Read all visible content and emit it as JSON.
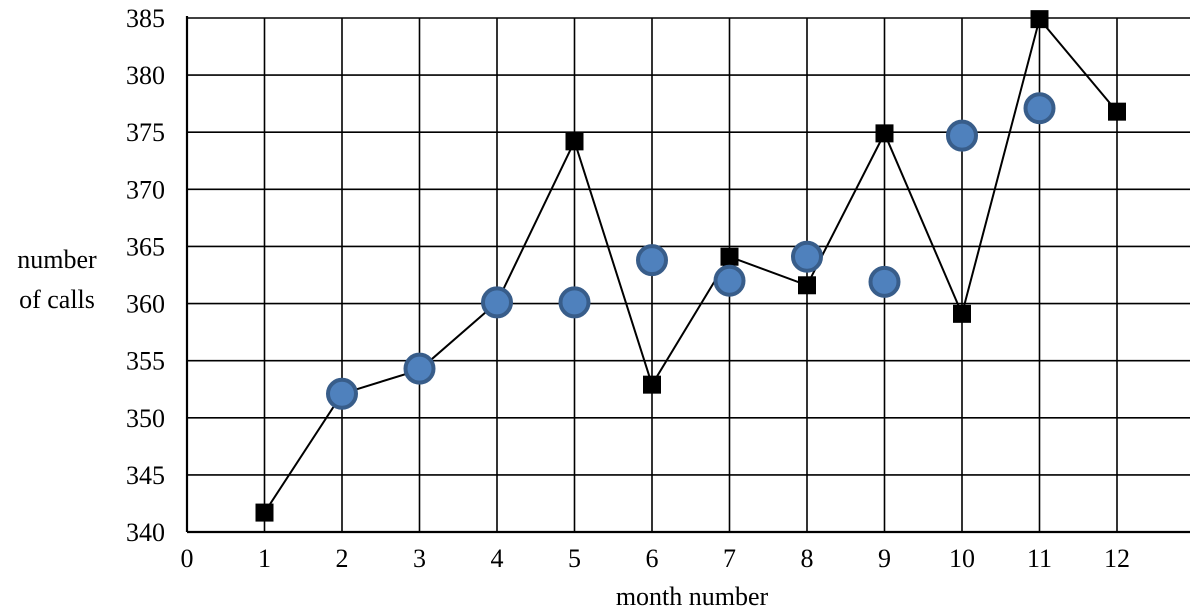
{
  "chart_data": {
    "type": "scatter",
    "xlabel": "month number",
    "ylabel": [
      "number",
      "of calls"
    ],
    "xlim": [
      0,
      12
    ],
    "ylim": [
      340,
      385
    ],
    "x_ticks": [
      "0",
      "1",
      "2",
      "3",
      "4",
      "5",
      "6",
      "7",
      "8",
      "9",
      "10",
      "11",
      "12"
    ],
    "y_ticks": [
      "340",
      "345",
      "350",
      "355",
      "360",
      "365",
      "370",
      "375",
      "380",
      "385"
    ],
    "grid": true,
    "series": [
      {
        "marker": "square",
        "color": "#000000",
        "connected": true,
        "points": [
          {
            "x": 1,
            "y": 341.7
          },
          {
            "x": 2,
            "y": 352.1
          },
          {
            "x": 3,
            "y": 354.2
          },
          {
            "x": 4,
            "y": 360.1
          },
          {
            "x": 5,
            "y": 374.2
          },
          {
            "x": 6,
            "y": 352.9
          },
          {
            "x": 7,
            "y": 364.1
          },
          {
            "x": 8,
            "y": 361.6
          },
          {
            "x": 9,
            "y": 374.9
          },
          {
            "x": 10,
            "y": 359.1
          },
          {
            "x": 11,
            "y": 384.9
          },
          {
            "x": 12,
            "y": 376.8
          }
        ]
      },
      {
        "marker": "circle",
        "color": "#4f81bd",
        "edge_color": "#385d8a",
        "connected": false,
        "points": [
          {
            "x": 2,
            "y": 352.1
          },
          {
            "x": 3,
            "y": 354.3
          },
          {
            "x": 4,
            "y": 360.1
          },
          {
            "x": 5,
            "y": 360.1
          },
          {
            "x": 6,
            "y": 363.8
          },
          {
            "x": 7,
            "y": 362.0
          },
          {
            "x": 8,
            "y": 364.1
          },
          {
            "x": 9,
            "y": 361.9
          },
          {
            "x": 10,
            "y": 374.7
          },
          {
            "x": 11,
            "y": 377.1
          }
        ]
      }
    ]
  }
}
